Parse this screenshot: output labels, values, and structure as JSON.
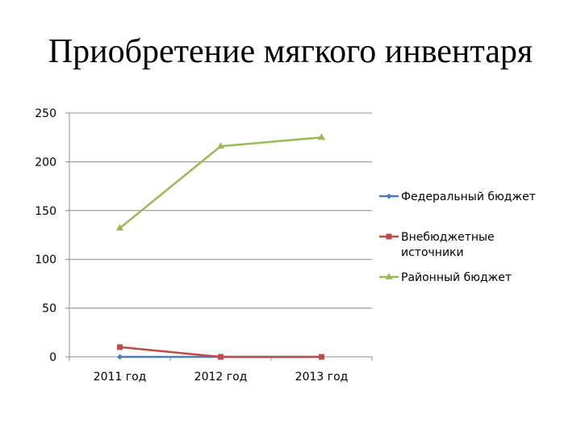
{
  "chart_data": {
    "type": "line",
    "title": "Приобретение мягкого инвентаря",
    "xlabel": "",
    "ylabel": "",
    "categories": [
      "2011 год",
      "2012 год",
      "2013 год"
    ],
    "ylim": [
      0,
      250
    ],
    "yticks": [
      0,
      50,
      100,
      150,
      200,
      250
    ],
    "grid": true,
    "legend_position": "right",
    "series": [
      {
        "name": "Федеральный бюджет",
        "values": [
          0,
          0,
          0
        ],
        "color": "#4a7ebb",
        "marker": "diamond"
      },
      {
        "name": "Внебюджетные источники",
        "name_lines": [
          "Внебюджетные",
          "источники"
        ],
        "values": [
          10,
          0,
          0
        ],
        "color": "#be4b48",
        "marker": "square"
      },
      {
        "name": "Районный бюджет",
        "values": [
          132,
          216,
          225
        ],
        "color": "#98b954",
        "marker": "triangle"
      }
    ]
  }
}
